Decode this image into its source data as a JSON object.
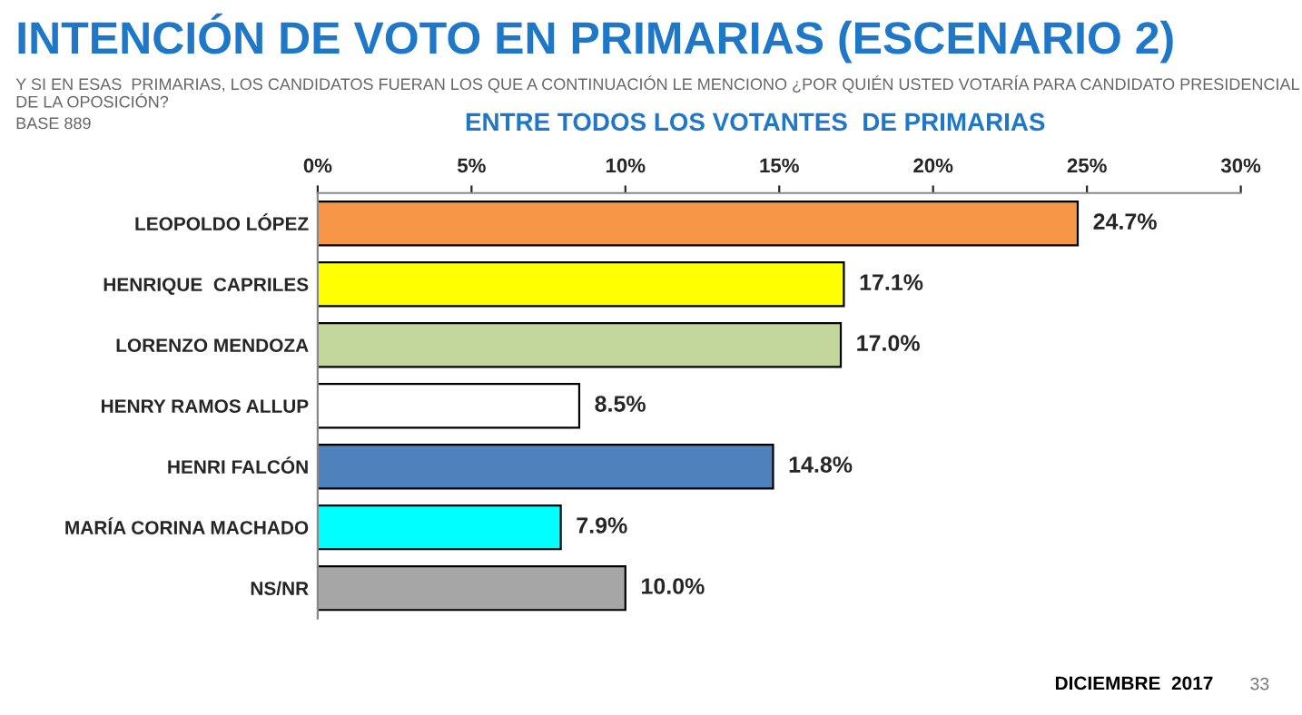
{
  "chart_data": {
    "type": "bar",
    "orientation": "horizontal",
    "title": "INTENCIÓN DE VOTO EN PRIMARIAS (ESCENARIO 2)",
    "subtitle": "Y SI EN ESAS  PRIMARIAS, LOS CANDIDATOS FUERAN LOS QUE A CONTINUACIÓN LE MENCIONO ¿POR QUIÉN USTED VOTARÍA PARA CANDIDATO PRESIDENCIAL DE LA OPOSICIÓN?",
    "annotations": [
      "BASE 889",
      "ENTRE TODOS LOS VOTANTES  DE PRIMARIAS",
      "DICIEMBRE  2017",
      "33"
    ],
    "categories": [
      "LEOPOLDO LÓPEZ",
      "HENRIQUE  CAPRILES",
      "LORENZO MENDOZA",
      "HENRY RAMOS ALLUP",
      "HENRI FALCÓN",
      "MARÍA CORINA MACHADO",
      "NS/NR"
    ],
    "values": [
      24.7,
      17.1,
      17.0,
      8.5,
      14.8,
      7.9,
      10.0
    ],
    "value_labels": [
      "24.7%",
      "17.1%",
      "17.0%",
      "8.5%",
      "14.8%",
      "7.9%",
      "10.0%"
    ],
    "colors": [
      "#f79646",
      "#ffff00",
      "#c3d69b",
      "#ffffff",
      "#4f81bd",
      "#00ffff",
      "#a6a6a6"
    ],
    "xlim": [
      0,
      30
    ],
    "xticks": [
      {
        "value": 0,
        "label": "0%"
      },
      {
        "value": 5,
        "label": "5%"
      },
      {
        "value": 10,
        "label": "10%"
      },
      {
        "value": 15,
        "label": "15%"
      },
      {
        "value": 20,
        "label": "20%"
      },
      {
        "value": 25,
        "label": "25%"
      },
      {
        "value": 30,
        "label": "30%"
      }
    ],
    "grid": false,
    "legend": false
  }
}
